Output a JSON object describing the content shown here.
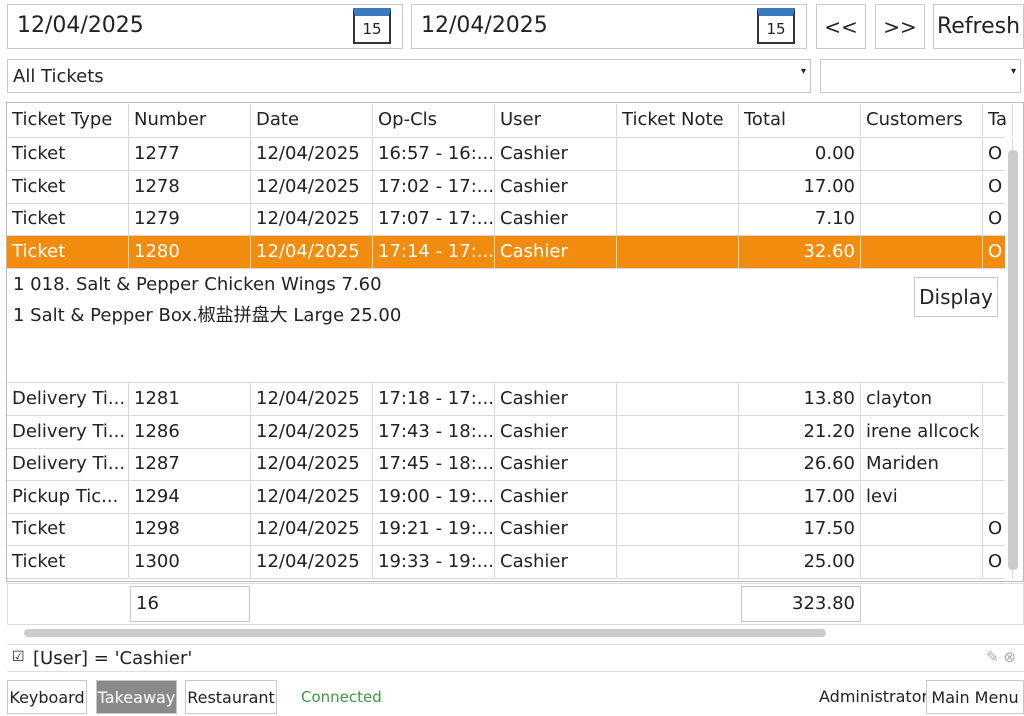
{
  "toolbar": {
    "date_from": "12/04/2025",
    "date_from_icon": "15",
    "date_to": "12/04/2025",
    "date_to_icon": "15",
    "prev": "<<",
    "next": ">>",
    "refresh": "Refresh"
  },
  "filter": {
    "ticket_filter": "All Tickets"
  },
  "table": {
    "columns": [
      "Ticket Type",
      "Number",
      "Date",
      "Op-Cls",
      "User",
      "Ticket Note",
      "Total",
      "Customers",
      "Ta"
    ],
    "rows": [
      [
        "Ticket",
        "1277",
        "12/04/2025",
        "16:57 - 16:...",
        "Cashier",
        "",
        "0.00",
        "",
        "O"
      ],
      [
        "Ticket",
        "1278",
        "12/04/2025",
        "17:02 - 17:...",
        "Cashier",
        "",
        "17.00",
        "",
        "O"
      ],
      [
        "Ticket",
        "1279",
        "12/04/2025",
        "17:07 - 17:...",
        "Cashier",
        "",
        "7.10",
        "",
        "O"
      ],
      [
        "Ticket",
        "1280",
        "12/04/2025",
        "17:14 - 17:...",
        "Cashier",
        "",
        "32.60",
        "",
        "O"
      ],
      [
        "Delivery Ti...",
        "1281",
        "12/04/2025",
        "17:18 - 17:...",
        "Cashier",
        "",
        "13.80",
        "clayton",
        ""
      ],
      [
        "Delivery Ti...",
        "1286",
        "12/04/2025",
        "17:43 - 18:...",
        "Cashier",
        "",
        "21.20",
        "irene allcock",
        ""
      ],
      [
        "Delivery Ti...",
        "1287",
        "12/04/2025",
        "17:45 - 18:...",
        "Cashier",
        "",
        "26.60",
        "Mariden",
        ""
      ],
      [
        "Pickup Tic...",
        "1294",
        "12/04/2025",
        "19:00 - 19:...",
        "Cashier",
        "",
        "17.00",
        "levi",
        ""
      ],
      [
        "Ticket",
        "1298",
        "12/04/2025",
        "19:21 - 19:...",
        "Cashier",
        "",
        "17.50",
        "",
        "O"
      ],
      [
        "Ticket",
        "1300",
        "12/04/2025",
        "19:33 - 19:...",
        "Cashier",
        "",
        "25.00",
        "",
        "O"
      ]
    ],
    "detail": {
      "lines": [
        "1 018. Salt & Pepper Chicken Wings 7.60",
        "1 Salt & Pepper Box.椒盐拼盘大 Large 25.00"
      ],
      "button": "Display"
    },
    "summary": {
      "count": "16",
      "total": "323.80"
    }
  },
  "filter_bar": {
    "expression": "[User] = 'Cashier'"
  },
  "status_bar": {
    "keyboard": "Keyboard",
    "takeaway": "Takeaway",
    "restaurant": "Restaurant",
    "connection": "Connected",
    "user": "Administrator",
    "main_menu": "Main Menu"
  }
}
